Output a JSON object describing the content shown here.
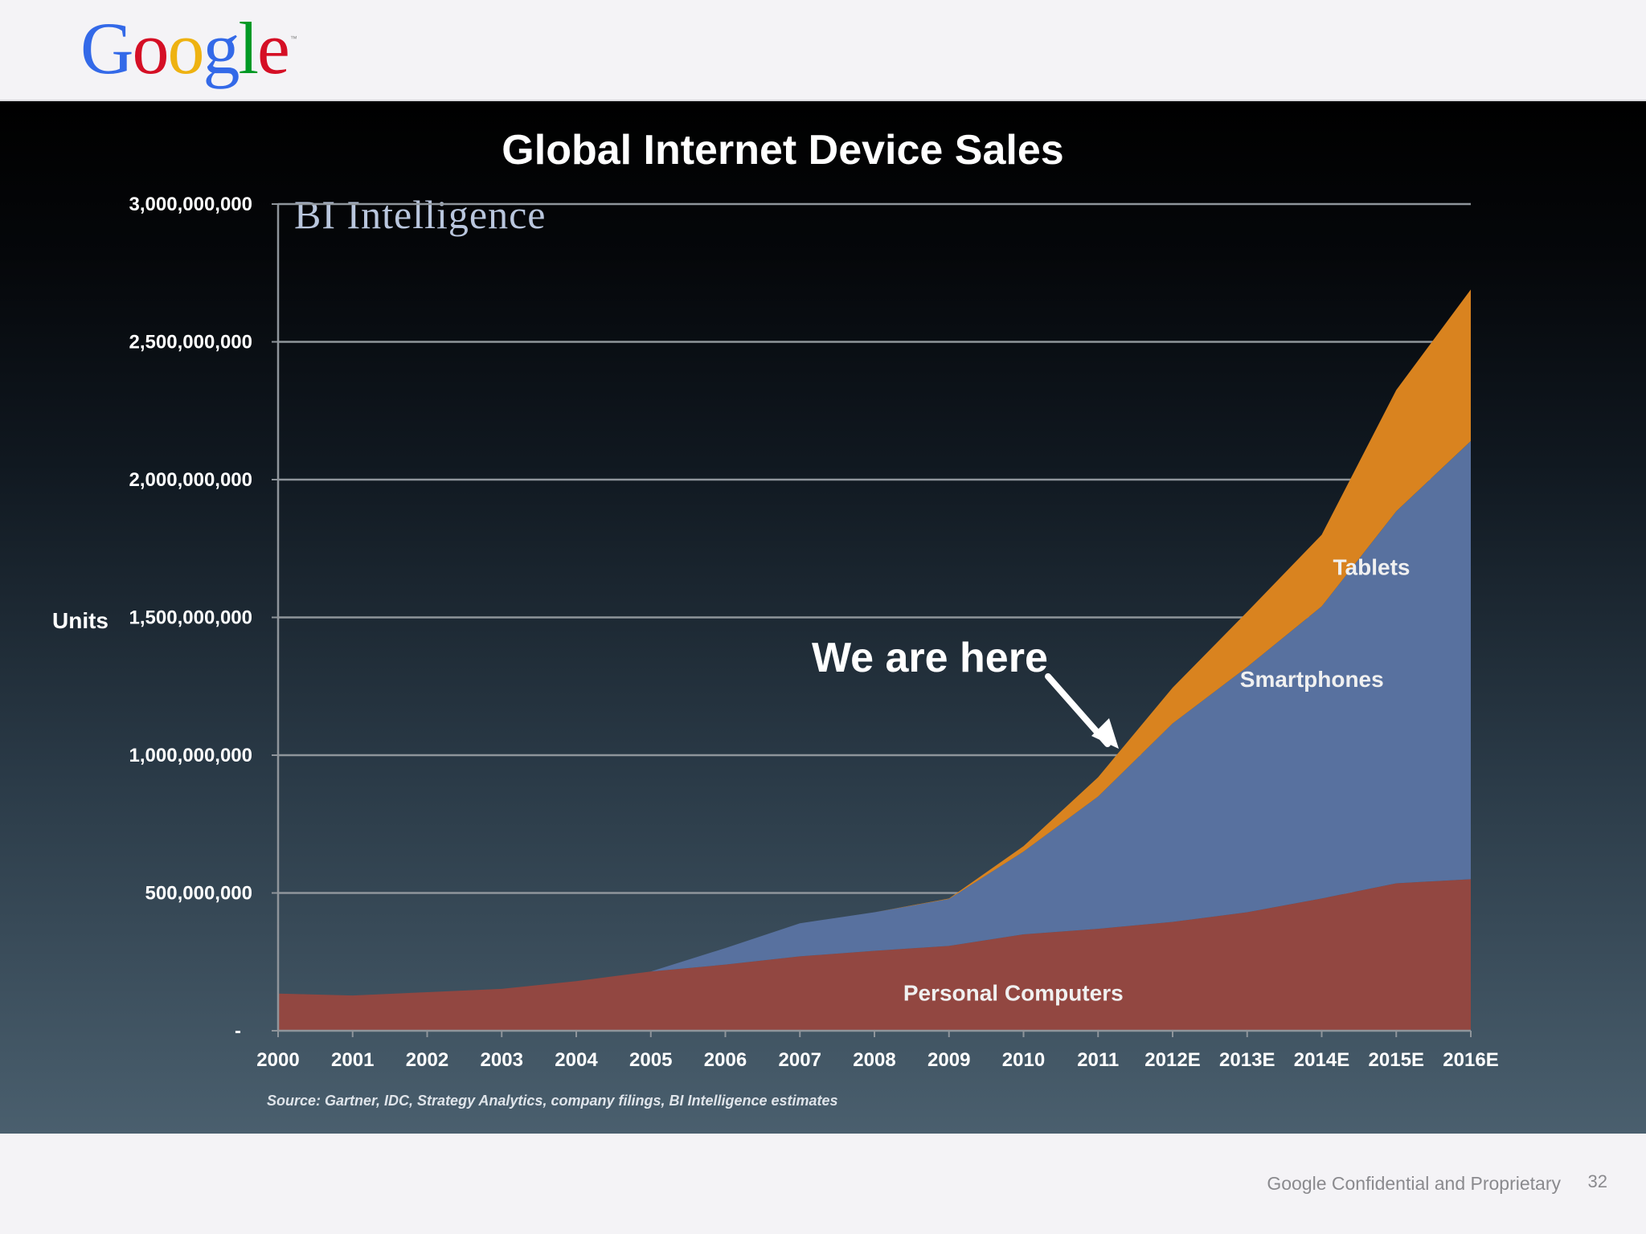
{
  "header": {
    "logo_letters": [
      {
        "char": "G",
        "color": "#3369e8"
      },
      {
        "char": "o",
        "color": "#d50f25"
      },
      {
        "char": "o",
        "color": "#eeb211"
      },
      {
        "char": "g",
        "color": "#3369e8"
      },
      {
        "char": "l",
        "color": "#009925"
      },
      {
        "char": "e",
        "color": "#d50f25"
      }
    ],
    "logo_tm": "™"
  },
  "footer": {
    "confidential": "Google Confidential and Proprietary",
    "page_number": "32"
  },
  "chart_data": {
    "type": "area",
    "stacked": true,
    "title": "Global Internet Device Sales",
    "ylabel": "Units",
    "xlabel": "",
    "brand": "BI Intelligence",
    "source": "Source: Gartner, IDC, Strategy Analytics, company filings, BI Intelligence estimates",
    "annotation": "We are here",
    "annotation_x": "2011",
    "categories": [
      "2000",
      "2001",
      "2002",
      "2003",
      "2004",
      "2005",
      "2006",
      "2007",
      "2008",
      "2009",
      "2010",
      "2011",
      "2012E",
      "2013E",
      "2014E",
      "2015E",
      "2016E"
    ],
    "ylim": [
      0,
      3000000000
    ],
    "yticks": [
      {
        "value": 0,
        "label": "-"
      },
      {
        "value": 500000000,
        "label": "500,000,000"
      },
      {
        "value": 1000000000,
        "label": "1,000,000,000"
      },
      {
        "value": 1500000000,
        "label": "1,500,000,000"
      },
      {
        "value": 2000000000,
        "label": "2,000,000,000"
      },
      {
        "value": 2500000000,
        "label": "2,500,000,000"
      },
      {
        "value": 3000000000,
        "label": "3,000,000,000"
      }
    ],
    "grid": true,
    "series": [
      {
        "name": "Personal Computers",
        "color": "#924741",
        "values": [
          135000000,
          128000000,
          140000000,
          152000000,
          180000000,
          215000000,
          240000000,
          270000000,
          290000000,
          308000000,
          350000000,
          370000000,
          395000000,
          430000000,
          480000000,
          535000000,
          550000000
        ]
      },
      {
        "name": "Smartphones",
        "color": "#58719f",
        "values": [
          0,
          0,
          0,
          0,
          0,
          0,
          60000000,
          120000000,
          140000000,
          170000000,
          300000000,
          480000000,
          720000000,
          890000000,
          1060000000,
          1350000000,
          1590000000
        ]
      },
      {
        "name": "Tablets",
        "color": "#d9831f",
        "values": [
          0,
          0,
          0,
          0,
          0,
          0,
          0,
          0,
          0,
          2000000,
          20000000,
          70000000,
          130000000,
          200000000,
          260000000,
          440000000,
          550000000
        ]
      }
    ]
  }
}
